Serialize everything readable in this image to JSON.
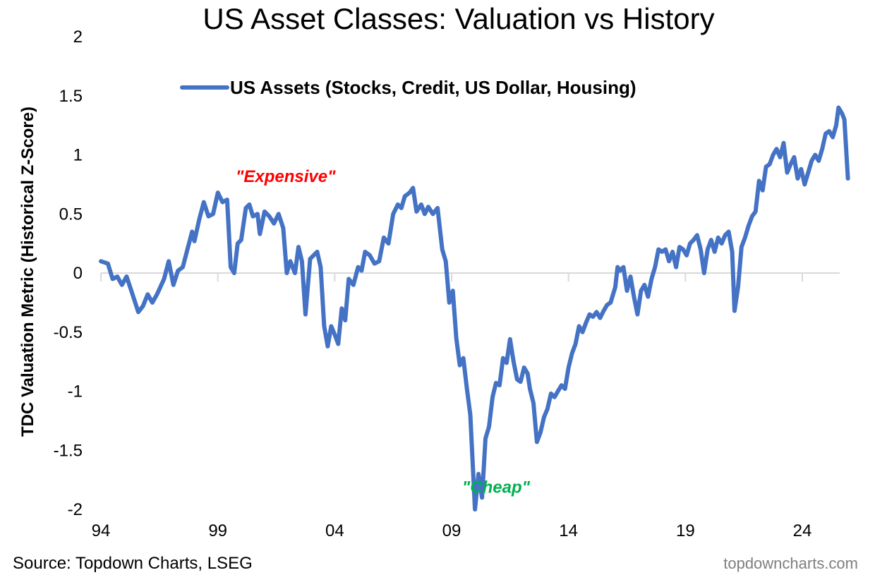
{
  "chart_data": {
    "type": "line",
    "title": "US Asset Classes: Valuation vs History",
    "ylabel": "TDC Valuation Metric (Historical Z-Score)",
    "xlabel": "",
    "xlim": [
      1994,
      2025.6
    ],
    "ylim": [
      -2,
      2
    ],
    "x_tick_values": [
      1994,
      1999,
      2004,
      2009,
      2014,
      2019,
      2024
    ],
    "x_tick_labels": [
      "94",
      "99",
      "04",
      "09",
      "14",
      "19",
      "24"
    ],
    "y_tick_values": [
      2,
      1.5,
      1,
      0.5,
      0,
      -0.5,
      -1,
      -1.5,
      -2
    ],
    "y_tick_labels": [
      "2",
      "1.5",
      "1",
      "0.5",
      "0",
      "-0.5",
      "-1",
      "-1.5",
      "-2"
    ],
    "grid": false,
    "legend_position": "top",
    "annotations": [
      {
        "text": "\"Expensive\"",
        "x": 2001.9,
        "y": 0.77,
        "color": "#ff0000"
      },
      {
        "text": "\"Cheap\"",
        "x": 2010.9,
        "y": -1.86,
        "color": "#00b050"
      }
    ],
    "series": [
      {
        "name": "US Assets (Stocks, Credit, US Dollar, Housing)",
        "color": "#4472c4",
        "points": [
          [
            1994.0,
            0.1
          ],
          [
            1994.3,
            0.08
          ],
          [
            1994.5,
            -0.05
          ],
          [
            1994.7,
            -0.03
          ],
          [
            1994.9,
            -0.1
          ],
          [
            1995.1,
            -0.03
          ],
          [
            1995.3,
            -0.15
          ],
          [
            1995.6,
            -0.33
          ],
          [
            1995.8,
            -0.28
          ],
          [
            1996.0,
            -0.18
          ],
          [
            1996.2,
            -0.25
          ],
          [
            1996.4,
            -0.18
          ],
          [
            1996.7,
            -0.05
          ],
          [
            1996.9,
            0.1
          ],
          [
            1997.1,
            -0.1
          ],
          [
            1997.3,
            0.02
          ],
          [
            1997.5,
            0.05
          ],
          [
            1997.7,
            0.2
          ],
          [
            1997.9,
            0.35
          ],
          [
            1998.0,
            0.27
          ],
          [
            1998.2,
            0.45
          ],
          [
            1998.4,
            0.6
          ],
          [
            1998.6,
            0.48
          ],
          [
            1998.8,
            0.5
          ],
          [
            1999.0,
            0.68
          ],
          [
            1999.2,
            0.6
          ],
          [
            1999.4,
            0.62
          ],
          [
            1999.55,
            0.05
          ],
          [
            1999.7,
            0.0
          ],
          [
            1999.85,
            0.25
          ],
          [
            2000.0,
            0.28
          ],
          [
            2000.2,
            0.55
          ],
          [
            2000.35,
            0.58
          ],
          [
            2000.5,
            0.48
          ],
          [
            2000.7,
            0.5
          ],
          [
            2000.8,
            0.33
          ],
          [
            2001.0,
            0.52
          ],
          [
            2001.2,
            0.48
          ],
          [
            2001.4,
            0.42
          ],
          [
            2001.6,
            0.5
          ],
          [
            2001.8,
            0.38
          ],
          [
            2001.95,
            0.0
          ],
          [
            2002.1,
            0.1
          ],
          [
            2002.3,
            0.0
          ],
          [
            2002.45,
            0.22
          ],
          [
            2002.6,
            0.1
          ],
          [
            2002.75,
            -0.35
          ],
          [
            2002.95,
            0.12
          ],
          [
            2003.1,
            0.15
          ],
          [
            2003.25,
            0.18
          ],
          [
            2003.4,
            0.05
          ],
          [
            2003.55,
            -0.45
          ],
          [
            2003.7,
            -0.62
          ],
          [
            2003.85,
            -0.45
          ],
          [
            2004.0,
            -0.52
          ],
          [
            2004.15,
            -0.6
          ],
          [
            2004.3,
            -0.3
          ],
          [
            2004.45,
            -0.4
          ],
          [
            2004.6,
            -0.05
          ],
          [
            2004.8,
            -0.1
          ],
          [
            2005.0,
            0.05
          ],
          [
            2005.15,
            0.02
          ],
          [
            2005.3,
            0.18
          ],
          [
            2005.5,
            0.15
          ],
          [
            2005.7,
            0.08
          ],
          [
            2005.9,
            0.1
          ],
          [
            2006.1,
            0.3
          ],
          [
            2006.3,
            0.25
          ],
          [
            2006.5,
            0.5
          ],
          [
            2006.7,
            0.58
          ],
          [
            2006.85,
            0.55
          ],
          [
            2007.0,
            0.65
          ],
          [
            2007.2,
            0.68
          ],
          [
            2007.35,
            0.72
          ],
          [
            2007.5,
            0.52
          ],
          [
            2007.7,
            0.58
          ],
          [
            2007.85,
            0.5
          ],
          [
            2008.0,
            0.56
          ],
          [
            2008.2,
            0.5
          ],
          [
            2008.4,
            0.55
          ],
          [
            2008.6,
            0.2
          ],
          [
            2008.75,
            0.1
          ],
          [
            2008.9,
            -0.25
          ],
          [
            2009.05,
            -0.15
          ],
          [
            2009.2,
            -0.55
          ],
          [
            2009.35,
            -0.78
          ],
          [
            2009.5,
            -0.72
          ],
          [
            2009.65,
            -0.97
          ],
          [
            2009.8,
            -1.2
          ],
          [
            2009.9,
            -1.6
          ],
          [
            2010.0,
            -2.0
          ],
          [
            2010.15,
            -1.7
          ],
          [
            2010.3,
            -1.9
          ],
          [
            2010.45,
            -1.4
          ],
          [
            2010.6,
            -1.3
          ],
          [
            2010.75,
            -1.05
          ],
          [
            2010.9,
            -0.93
          ],
          [
            2011.05,
            -0.95
          ],
          [
            2011.2,
            -0.72
          ],
          [
            2011.35,
            -0.76
          ],
          [
            2011.5,
            -0.56
          ],
          [
            2011.65,
            -0.75
          ],
          [
            2011.8,
            -0.9
          ],
          [
            2011.95,
            -0.92
          ],
          [
            2012.1,
            -0.8
          ],
          [
            2012.25,
            -0.85
          ],
          [
            2012.35,
            -0.98
          ],
          [
            2012.5,
            -1.1
          ],
          [
            2012.65,
            -1.43
          ],
          [
            2012.8,
            -1.35
          ],
          [
            2012.95,
            -1.22
          ],
          [
            2013.1,
            -1.15
          ],
          [
            2013.25,
            -1.02
          ],
          [
            2013.4,
            -1.05
          ],
          [
            2013.55,
            -1.0
          ],
          [
            2013.7,
            -0.95
          ],
          [
            2013.85,
            -0.98
          ],
          [
            2014.0,
            -0.8
          ],
          [
            2014.15,
            -0.68
          ],
          [
            2014.3,
            -0.6
          ],
          [
            2014.45,
            -0.45
          ],
          [
            2014.6,
            -0.5
          ],
          [
            2014.75,
            -0.42
          ],
          [
            2014.9,
            -0.35
          ],
          [
            2015.05,
            -0.37
          ],
          [
            2015.2,
            -0.33
          ],
          [
            2015.35,
            -0.38
          ],
          [
            2015.5,
            -0.32
          ],
          [
            2015.65,
            -0.27
          ],
          [
            2015.8,
            -0.25
          ],
          [
            2016.0,
            -0.12
          ],
          [
            2016.1,
            0.05
          ],
          [
            2016.2,
            0.02
          ],
          [
            2016.35,
            0.05
          ],
          [
            2016.5,
            -0.15
          ],
          [
            2016.65,
            -0.03
          ],
          [
            2016.8,
            -0.2
          ],
          [
            2016.95,
            -0.35
          ],
          [
            2017.1,
            -0.15
          ],
          [
            2017.25,
            -0.1
          ],
          [
            2017.4,
            -0.2
          ],
          [
            2017.55,
            -0.05
          ],
          [
            2017.7,
            0.05
          ],
          [
            2017.85,
            0.2
          ],
          [
            2018.0,
            0.18
          ],
          [
            2018.15,
            0.2
          ],
          [
            2018.3,
            0.1
          ],
          [
            2018.45,
            0.18
          ],
          [
            2018.6,
            0.05
          ],
          [
            2018.75,
            0.22
          ],
          [
            2018.9,
            0.2
          ],
          [
            2019.05,
            0.15
          ],
          [
            2019.2,
            0.25
          ],
          [
            2019.35,
            0.28
          ],
          [
            2019.5,
            0.32
          ],
          [
            2019.65,
            0.2
          ],
          [
            2019.8,
            0.0
          ],
          [
            2019.95,
            0.2
          ],
          [
            2020.1,
            0.28
          ],
          [
            2020.25,
            0.18
          ],
          [
            2020.4,
            0.3
          ],
          [
            2020.55,
            0.25
          ],
          [
            2020.7,
            0.32
          ],
          [
            2020.85,
            0.35
          ],
          [
            2021.0,
            0.18
          ],
          [
            2021.1,
            -0.32
          ],
          [
            2021.25,
            -0.12
          ],
          [
            2021.4,
            0.22
          ],
          [
            2021.55,
            0.3
          ],
          [
            2021.7,
            0.4
          ],
          [
            2021.85,
            0.48
          ],
          [
            2022.0,
            0.52
          ],
          [
            2022.15,
            0.78
          ],
          [
            2022.3,
            0.7
          ],
          [
            2022.45,
            0.9
          ],
          [
            2022.6,
            0.92
          ],
          [
            2022.75,
            1.0
          ],
          [
            2022.9,
            1.05
          ],
          [
            2023.05,
            0.98
          ],
          [
            2023.2,
            1.1
          ],
          [
            2023.35,
            0.85
          ],
          [
            2023.5,
            0.92
          ],
          [
            2023.65,
            0.98
          ],
          [
            2023.8,
            0.8
          ],
          [
            2023.95,
            0.88
          ],
          [
            2024.1,
            0.75
          ],
          [
            2024.25,
            0.85
          ],
          [
            2024.4,
            0.95
          ],
          [
            2024.55,
            1.0
          ],
          [
            2024.7,
            0.95
          ],
          [
            2024.85,
            1.05
          ],
          [
            2025.0,
            1.18
          ],
          [
            2025.15,
            1.2
          ],
          [
            2025.3,
            1.15
          ],
          [
            2025.45,
            1.25
          ],
          [
            2025.55,
            1.4
          ],
          [
            2025.7,
            1.35
          ],
          [
            2025.8,
            1.3
          ],
          [
            2025.95,
            0.8
          ]
        ]
      }
    ]
  },
  "source_text": "Source: Topdown Charts, LSEG",
  "brand_text": "topdowncharts.com"
}
